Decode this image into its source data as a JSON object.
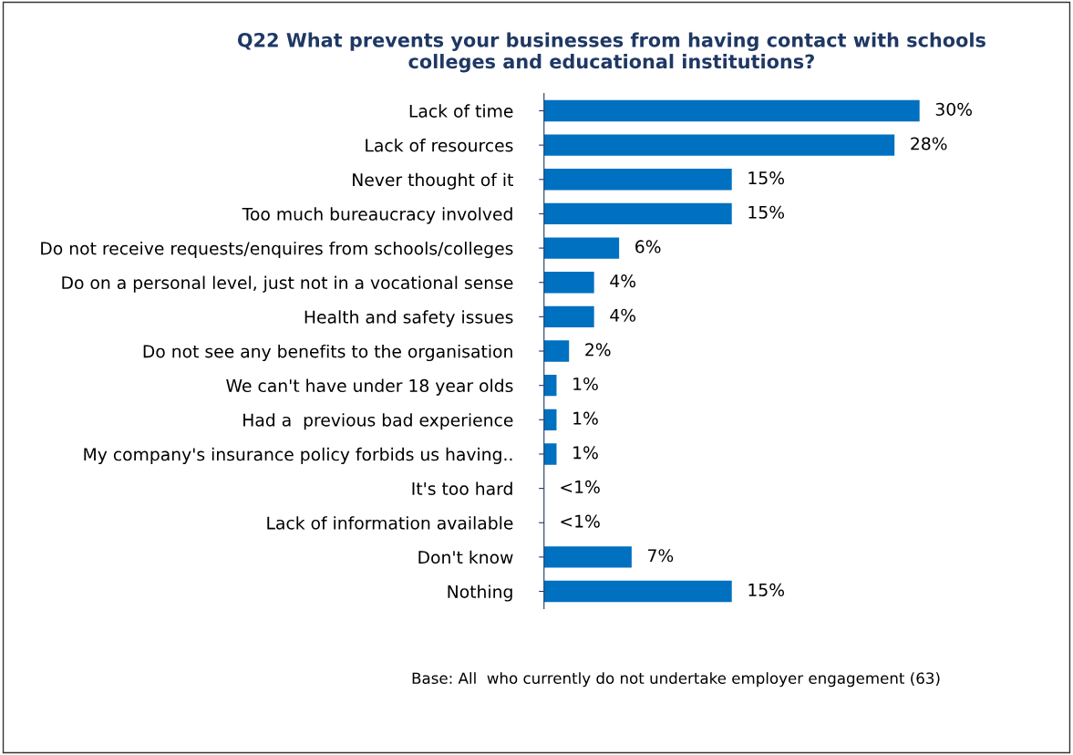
{
  "chart_data": {
    "type": "bar",
    "orientation": "horizontal",
    "title": "Q22 What prevents your businesses from having contact with schools\ncolleges and educational institutions?",
    "categories": [
      "Lack of time",
      "Lack of resources",
      "Never thought of it",
      "Too much bureaucracy involved",
      "Do not receive requests/enquires from schools/colleges",
      "Do on a personal level, just not in a vocational sense",
      "Health and safety issues",
      "Do not see any benefits to the organisation",
      "We can't have under 18 year olds",
      "Had a  previous bad experience",
      "My company's insurance policy forbids us having..",
      "It's too hard",
      "Lack of information available",
      "Don't know",
      "Nothing"
    ],
    "values": [
      30,
      28,
      15,
      15,
      6,
      4,
      4,
      2,
      1,
      1,
      1,
      0,
      0,
      7,
      15
    ],
    "value_labels": [
      "30%",
      "28%",
      "15%",
      "15%",
      "6%",
      "4%",
      "4%",
      "2%",
      "1%",
      "1%",
      "1%",
      "<1%",
      "<1%",
      "7%",
      "15%"
    ],
    "color": "#0070c0",
    "annotations": [
      "Base: All  who currently do not undertake employer engagement (63)"
    ]
  }
}
